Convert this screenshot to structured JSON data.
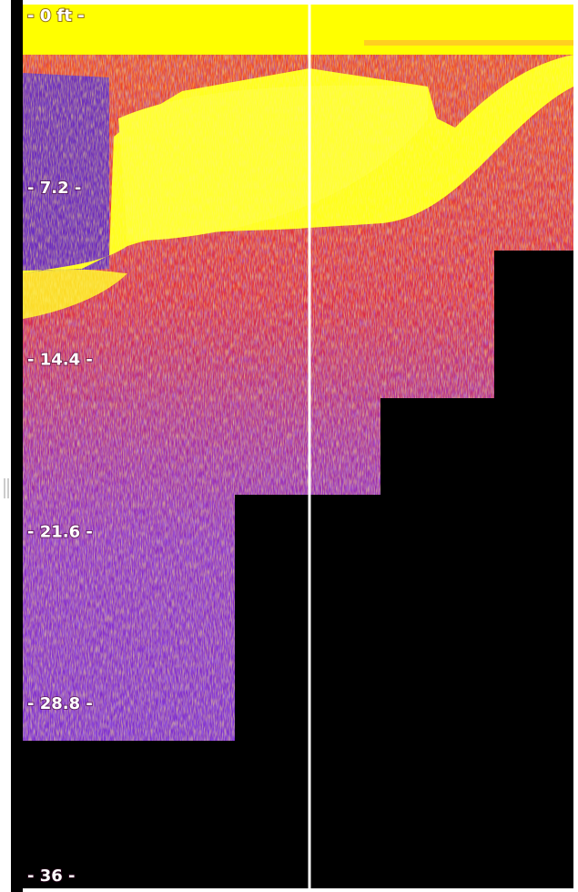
{
  "depth_scale": {
    "labels": [
      "- 0 ft -",
      "- 7.2 -",
      "- 14.4 -",
      "- 21.6 -",
      "- 28.8 -",
      "- 36 -"
    ]
  }
}
